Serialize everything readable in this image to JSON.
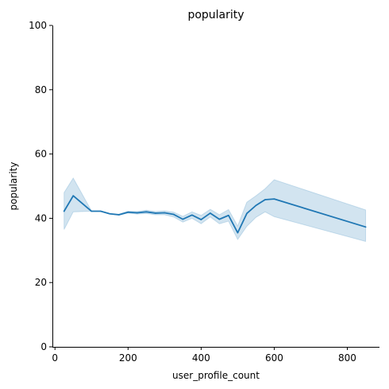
{
  "chart_data": {
    "type": "line",
    "title": "popularity",
    "xlabel": "user_profile_count",
    "ylabel": "popularity",
    "xlim": [
      -7,
      888
    ],
    "ylim": [
      0,
      100
    ],
    "xticks": [
      0,
      200,
      400,
      600,
      800
    ],
    "yticks": [
      0,
      20,
      40,
      60,
      80,
      100
    ],
    "grid": false,
    "colors": {
      "line": "#1f77b4",
      "band": "#1f77b4"
    },
    "series": [
      {
        "x": [
          25,
          50,
          100,
          125,
          150,
          175,
          200,
          225,
          250,
          275,
          300,
          325,
          350,
          375,
          400,
          425,
          450,
          475,
          500,
          525,
          550,
          575,
          600,
          850
        ],
        "y": [
          42.2,
          47.0,
          42.2,
          42.2,
          41.4,
          41.1,
          41.9,
          41.7,
          42.0,
          41.6,
          41.7,
          41.2,
          39.7,
          41.0,
          39.6,
          41.6,
          39.7,
          40.9,
          35.5,
          41.5,
          44.0,
          45.8,
          46.0,
          37.3
        ],
        "lower": [
          36.5,
          42.0,
          42.2,
          42.2,
          41.3,
          41.0,
          41.6,
          41.3,
          41.5,
          41.1,
          41.1,
          40.4,
          38.8,
          40.0,
          38.3,
          40.4,
          38.3,
          39.1,
          33.4,
          37.5,
          40.3,
          42.0,
          40.5,
          32.8
        ],
        "upper": [
          48.0,
          52.5,
          42.3,
          42.3,
          41.5,
          41.3,
          42.2,
          42.1,
          42.5,
          42.1,
          42.3,
          41.9,
          40.6,
          42.0,
          40.9,
          42.8,
          41.1,
          42.7,
          37.6,
          45.0,
          47.0,
          49.2,
          52.0,
          42.6
        ]
      }
    ]
  }
}
